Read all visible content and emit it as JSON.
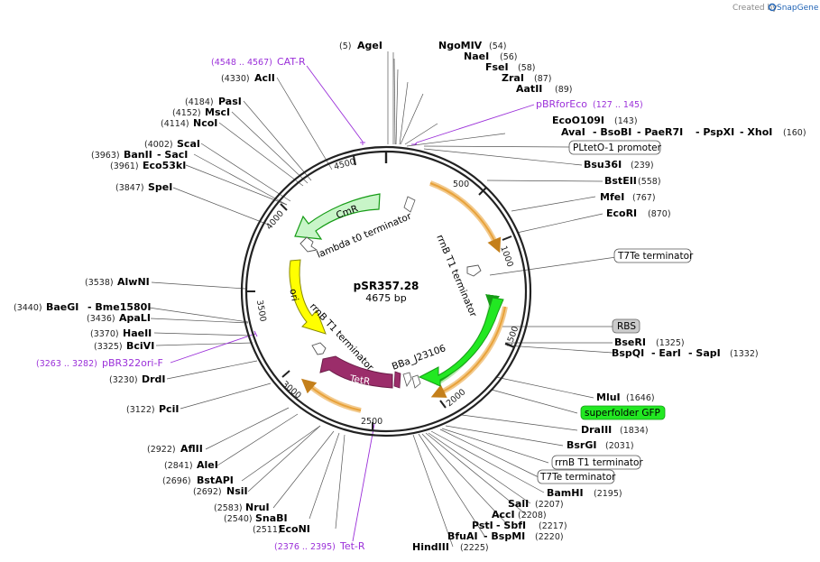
{
  "watermark": {
    "prefix": "Created by",
    "brand": "SnapGene",
    "brand_color": "#1f63b5"
  },
  "plasmid": {
    "name": "pSR357.28",
    "length": "4675 bp"
  },
  "ticks": [
    "500",
    "1000",
    "1500",
    "2000",
    "2500",
    "3000",
    "3500",
    "4000",
    "4500"
  ],
  "sites": {
    "agei": {
      "pos": "(5)",
      "name": "AgeI"
    },
    "ngomiv": {
      "name": "NgoMIV",
      "pos": "(54)"
    },
    "naei": {
      "name": "NaeI",
      "pos": "(56)"
    },
    "fsei": {
      "name": "FseI",
      "pos": "(58)"
    },
    "zrai": {
      "name": "ZraI",
      "pos": "(87)"
    },
    "aatii": {
      "name": "AatII",
      "pos": "(89)"
    },
    "eco0109i": {
      "name": "EcoO109I",
      "pos": "(143)"
    },
    "aval_group": {
      "a": "AvaI",
      "b": "- BsoBI",
      "c": "- PaeR7I",
      "d": "- PspXI",
      "e": "- XhoI",
      "pos": "(160)"
    },
    "bsu36i": {
      "name": "Bsu36I",
      "pos": "(239)"
    },
    "bsteii": {
      "name": "BstEII",
      "pos": "(558)"
    },
    "mfei": {
      "name": "MfeI",
      "pos": "(767)"
    },
    "ecori": {
      "name": "EcoRI",
      "pos": "(870)"
    },
    "bseri": {
      "name": "BseRI",
      "pos": "(1325)"
    },
    "bspqi_group": {
      "a": "BspQI",
      "b": "- EarI",
      "c": "- SapI",
      "pos": "(1332)"
    },
    "mlui": {
      "name": "MluI",
      "pos": "(1646)"
    },
    "draiii": {
      "name": "DraIII",
      "pos": "(1834)"
    },
    "bsrgi": {
      "name": "BsrGI",
      "pos": "(2031)"
    },
    "bamhi": {
      "name": "BamHI",
      "pos": "(2195)"
    },
    "sali": {
      "name": "SalI",
      "pos": "(2207)"
    },
    "acci": {
      "name": "AccI",
      "pos": "(2208)"
    },
    "psti_group": {
      "a": "PstI",
      "b": "- SbfI",
      "pos": "(2217)"
    },
    "bfuai_group": {
      "a": "BfuAI",
      "b": "- BspMI",
      "pos": "(2220)"
    },
    "hindiii": {
      "name": "HindIII",
      "pos": "(2225)"
    },
    "econi": {
      "pos": "(2511)",
      "name": "EcoNI"
    },
    "snabi": {
      "pos": "(2540)",
      "name": "SnaBI"
    },
    "nrui": {
      "pos": "(2583)",
      "name": "NruI"
    },
    "nsii": {
      "pos": "(2692)",
      "name": "NsiI"
    },
    "bstapi": {
      "pos": "(2696)",
      "name": "BstAPI"
    },
    "alei": {
      "pos": "(2841)",
      "name": "AleI"
    },
    "afliii": {
      "pos": "(2922)",
      "name": "AflII"
    },
    "pcii": {
      "pos": "(3122)",
      "name": "PciI"
    },
    "drdi": {
      "pos": "(3230)",
      "name": "DrdI"
    },
    "bcivi": {
      "pos": "(3325)",
      "name": "BciVI"
    },
    "haeii": {
      "pos": "(3370)",
      "name": "HaeII"
    },
    "apali": {
      "pos": "(3436)",
      "name": "ApaLI"
    },
    "baegi_group": {
      "pos": "(3440)",
      "a": "BaeGI",
      "b": "- Bme1580I"
    },
    "alwni": {
      "pos": "(3538)",
      "name": "AlwNI"
    },
    "spei": {
      "pos": "(3847)",
      "name": "SpeI"
    },
    "eco53ki": {
      "pos": "(3961)",
      "name": "Eco53kI"
    },
    "banii_group": {
      "pos": "(3963)",
      "a": "BanII",
      "b": "- SacI"
    },
    "scai": {
      "pos": "(4002)",
      "name": "ScaI"
    },
    "ncoi": {
      "pos": "(4114)",
      "name": "NcoI"
    },
    "msci": {
      "pos": "(4152)",
      "name": "MscI"
    },
    "pasi": {
      "pos": "(4184)",
      "name": "PasI"
    },
    "acli": {
      "pos": "(4330)",
      "name": "AclI"
    }
  },
  "primers": {
    "catr": {
      "range": "(4548 .. 4567)",
      "name": "CAT-R"
    },
    "pbrforeco": {
      "name": "pBRforEco",
      "range": "(127 .. 145)"
    },
    "pbr322ori": {
      "range": "(3263 .. 3282)",
      "name": "pBR322ori-F"
    },
    "tetr_primer": {
      "range": "(2376 .. 2395)",
      "name": "Tet-R"
    }
  },
  "feature_boxes": {
    "pltet": "PLtetO-1 promoter",
    "t7te_1": "T7Te terminator",
    "rbs": "RBS",
    "sfgfp": "superfolder GFP",
    "rrnb": "rrnB T1 terminator",
    "t7te_2": "T7Te terminator"
  },
  "inner_features": {
    "cmr": "CmR",
    "lambda": "lambda t0 terminator",
    "ori": "ori",
    "rrnb_top": "rrnB T1 terminator",
    "rrnb_bottom": "rrnB T1 terminator",
    "tetr": "TetR",
    "bba": "BBa_J23106"
  },
  "colors": {
    "primer": "#9b30d9",
    "cmr_fill": "#c8f5c8",
    "ori_fill": "#ffff00",
    "tetr_fill": "#9b2d6a",
    "gfp_fill": "#22e822",
    "orange": "#e8a23a",
    "rbs_fill": "#cccccc"
  }
}
